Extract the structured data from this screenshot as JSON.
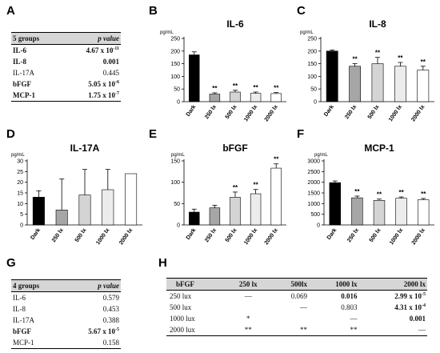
{
  "panels": {
    "A": "A",
    "B": "B",
    "C": "C",
    "D": "D",
    "E": "E",
    "F": "F",
    "G": "G",
    "H": "H"
  },
  "table_a": {
    "headers": [
      "5 groups",
      "p value"
    ],
    "rows": [
      {
        "name": "IL-6",
        "value": "4.67 x 10",
        "exp": "-11",
        "bold": true
      },
      {
        "name": "IL-8",
        "value": "0.001",
        "exp": "",
        "bold": true
      },
      {
        "name": "IL-17A",
        "value": "0.445",
        "exp": "",
        "bold": false
      },
      {
        "name": "bFGF",
        "value": "5.05 x 10",
        "exp": "-6",
        "bold": true
      },
      {
        "name": "MCP-1",
        "value": "1.75 x 10",
        "exp": "-7",
        "bold": true
      }
    ]
  },
  "table_g": {
    "headers": [
      "4 groups",
      "p value"
    ],
    "rows": [
      {
        "name": "IL-6",
        "value": "0.579",
        "exp": "",
        "bold": false
      },
      {
        "name": "IL-8",
        "value": "0.453",
        "exp": "",
        "bold": false
      },
      {
        "name": "IL-17A",
        "value": "0.388",
        "exp": "",
        "bold": false
      },
      {
        "name": "bFGF",
        "value": "5.67 x 10",
        "exp": "-5",
        "bold": true
      },
      {
        "name": "MCP-1",
        "value": "0.158",
        "exp": "",
        "bold": false
      }
    ]
  },
  "table_h": {
    "headers": [
      "bFGF",
      "250 lx",
      "500lx",
      "1000 lx",
      "2000 lx"
    ],
    "rows": [
      {
        "cells": [
          {
            "t": "250 lux"
          },
          {
            "t": "—"
          },
          {
            "t": "0.069"
          },
          {
            "t": "0.016",
            "b": true
          },
          {
            "t": "2.99 x 10",
            "exp": "-5",
            "b": true
          }
        ]
      },
      {
        "cells": [
          {
            "t": "500 lux"
          },
          {
            "t": ""
          },
          {
            "t": "—"
          },
          {
            "t": "0.803"
          },
          {
            "t": "4.31 x 10",
            "exp": "-4",
            "b": true
          }
        ]
      },
      {
        "cells": [
          {
            "t": "1000 lux"
          },
          {
            "t": "*"
          },
          {
            "t": ""
          },
          {
            "t": "—"
          },
          {
            "t": "0.001",
            "b": true
          }
        ]
      },
      {
        "cells": [
          {
            "t": "2000 lux"
          },
          {
            "t": "**"
          },
          {
            "t": "**"
          },
          {
            "t": "**"
          },
          {
            "t": "—"
          }
        ]
      }
    ]
  },
  "chart_data": [
    {
      "id": "B",
      "type": "bar",
      "title": "IL-6",
      "ylabel": "pg/mL",
      "categories": [
        "Dark",
        "250 lx",
        "500 lx",
        "1000 lx",
        "2000 lx"
      ],
      "values": [
        185,
        30,
        38,
        33,
        32
      ],
      "errors": [
        12,
        5,
        7,
        5,
        4
      ],
      "sig": [
        "",
        "**",
        "**",
        "**",
        "**"
      ],
      "ylim": [
        0,
        250
      ],
      "yticks": [
        0,
        50,
        100,
        150,
        200,
        250
      ],
      "colors": [
        "#000000",
        "#a6a6a6",
        "#d4d4d4",
        "#ececec",
        "#ffffff"
      ]
    },
    {
      "id": "C",
      "type": "bar",
      "title": "IL-8",
      "ylabel": "pg/mL",
      "categories": [
        "Dark",
        "250 lx",
        "500 lx",
        "1000 lx",
        "2000 lx"
      ],
      "values": [
        200,
        140,
        150,
        140,
        125
      ],
      "errors": [
        4,
        10,
        25,
        15,
        15
      ],
      "sig": [
        "",
        "**",
        "**",
        "**",
        "**"
      ],
      "ylim": [
        0,
        250
      ],
      "yticks": [
        0,
        50,
        100,
        150,
        200,
        250
      ],
      "colors": [
        "#000000",
        "#a6a6a6",
        "#d4d4d4",
        "#ececec",
        "#ffffff"
      ]
    },
    {
      "id": "D",
      "type": "bar",
      "title": "IL-17A",
      "ylabel": "pg/mL",
      "categories": [
        "Dark",
        "250 lx",
        "500 lx",
        "1000 lx",
        "2000 lx"
      ],
      "values": [
        13,
        7,
        14,
        16.5,
        24
      ],
      "errors": [
        3,
        14.5,
        12,
        9.5,
        0
      ],
      "sig": [
        "",
        "",
        "",
        "",
        ""
      ],
      "ylim": [
        0,
        30
      ],
      "yticks": [
        0,
        5,
        10,
        15,
        20,
        25,
        30
      ],
      "colors": [
        "#000000",
        "#a6a6a6",
        "#d4d4d4",
        "#ececec",
        "#ffffff"
      ]
    },
    {
      "id": "E",
      "type": "bar",
      "title": "bFGF",
      "ylabel": "pg/mL",
      "categories": [
        "Dark",
        "250 lx",
        "500 lx",
        "1000 lx",
        "2000 lx"
      ],
      "values": [
        30,
        40,
        65,
        73,
        133
      ],
      "errors": [
        7,
        6,
        12,
        10,
        10
      ],
      "sig": [
        "",
        "",
        "**",
        "**",
        "**"
      ],
      "ylim": [
        0,
        150
      ],
      "yticks": [
        0,
        50,
        100,
        150
      ],
      "colors": [
        "#000000",
        "#a6a6a6",
        "#d4d4d4",
        "#ececec",
        "#ffffff"
      ]
    },
    {
      "id": "F",
      "type": "bar",
      "title": "MCP-1",
      "ylabel": "pg/mL",
      "categories": [
        "Dark",
        "250 lx",
        "500 lx",
        "1000 lx",
        "2000 lx"
      ],
      "values": [
        1980,
        1270,
        1150,
        1250,
        1180
      ],
      "errors": [
        80,
        80,
        60,
        60,
        60
      ],
      "sig": [
        "",
        "**",
        "**",
        "**",
        "**"
      ],
      "ylim": [
        0,
        3000
      ],
      "yticks": [
        0,
        500,
        1000,
        1500,
        2000,
        2500,
        3000
      ],
      "colors": [
        "#000000",
        "#a6a6a6",
        "#d4d4d4",
        "#ececec",
        "#ffffff"
      ]
    }
  ]
}
